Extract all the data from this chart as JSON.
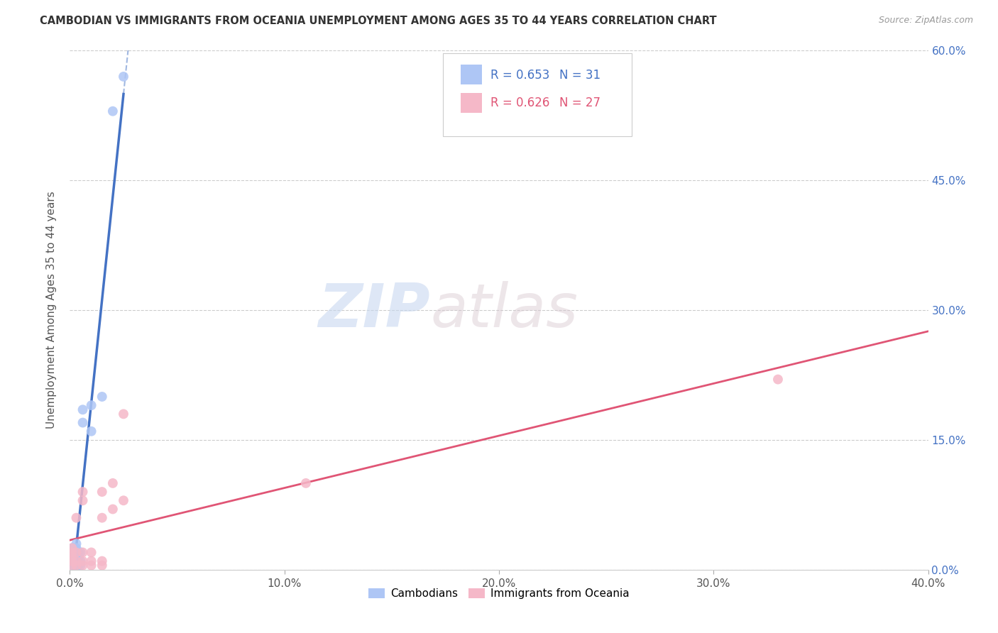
{
  "title": "CAMBODIAN VS IMMIGRANTS FROM OCEANIA UNEMPLOYMENT AMONG AGES 35 TO 44 YEARS CORRELATION CHART",
  "source": "Source: ZipAtlas.com",
  "ylabel": "Unemployment Among Ages 35 to 44 years",
  "xlim": [
    0.0,
    0.4
  ],
  "ylim": [
    0.0,
    0.6
  ],
  "xticks": [
    0.0,
    0.1,
    0.2,
    0.3,
    0.4
  ],
  "xtick_labels": [
    "0.0%",
    "10.0%",
    "20.0%",
    "30.0%",
    "40.0%"
  ],
  "yticks": [
    0.0,
    0.15,
    0.3,
    0.45,
    0.6
  ],
  "ytick_labels_right": [
    "0.0%",
    "15.0%",
    "30.0%",
    "45.0%",
    "60.0%"
  ],
  "grid_color": "#cccccc",
  "background_color": "#ffffff",
  "cambodian_color": "#aec6f5",
  "oceania_color": "#f5b8c8",
  "cambodian_line_color": "#4472c4",
  "oceania_line_color": "#e05575",
  "legend_R_cambodian": "R = 0.653",
  "legend_N_cambodian": "N = 31",
  "legend_R_oceania": "R = 0.626",
  "legend_N_oceania": "N = 27",
  "watermark_zip": "ZIP",
  "watermark_atlas": "atlas",
  "cambodian_x": [
    0.001,
    0.001,
    0.001,
    0.001,
    0.001,
    0.001,
    0.002,
    0.002,
    0.002,
    0.002,
    0.002,
    0.003,
    0.003,
    0.003,
    0.003,
    0.003,
    0.003,
    0.004,
    0.004,
    0.004,
    0.004,
    0.005,
    0.005,
    0.005,
    0.006,
    0.006,
    0.01,
    0.01,
    0.015,
    0.02,
    0.025
  ],
  "cambodian_y": [
    0.005,
    0.008,
    0.01,
    0.015,
    0.02,
    0.025,
    0.005,
    0.01,
    0.015,
    0.02,
    0.025,
    0.005,
    0.01,
    0.015,
    0.02,
    0.025,
    0.03,
    0.005,
    0.01,
    0.015,
    0.02,
    0.005,
    0.01,
    0.02,
    0.17,
    0.185,
    0.19,
    0.16,
    0.2,
    0.53,
    0.57
  ],
  "oceania_x": [
    0.001,
    0.001,
    0.001,
    0.001,
    0.001,
    0.003,
    0.003,
    0.003,
    0.003,
    0.006,
    0.006,
    0.006,
    0.006,
    0.006,
    0.01,
    0.01,
    0.01,
    0.015,
    0.015,
    0.015,
    0.015,
    0.02,
    0.02,
    0.025,
    0.025,
    0.11,
    0.33
  ],
  "oceania_y": [
    0.005,
    0.01,
    0.015,
    0.02,
    0.025,
    0.005,
    0.01,
    0.02,
    0.06,
    0.005,
    0.01,
    0.02,
    0.08,
    0.09,
    0.005,
    0.01,
    0.02,
    0.005,
    0.01,
    0.06,
    0.09,
    0.07,
    0.1,
    0.08,
    0.18,
    0.1,
    0.22
  ]
}
